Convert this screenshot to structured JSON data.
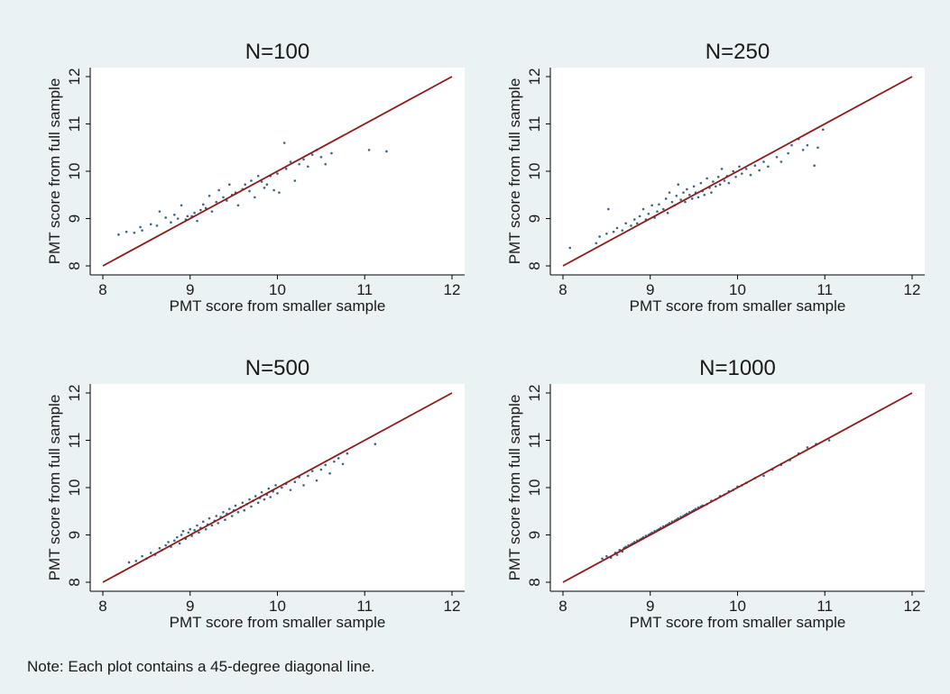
{
  "note": "Note: Each plot contains a 45-degree diagonal line.",
  "colors": {
    "background": "#eaf2f3",
    "plot_area": "#ffffff",
    "diagonal_line": "#8b1a1a",
    "points": "#1a476f"
  },
  "chart_data": [
    {
      "type": "scatter",
      "title": "N=100",
      "xlabel": "PMT score from smaller sample",
      "ylabel": "PMT score from full sample",
      "xlim": [
        8,
        12
      ],
      "ylim": [
        8,
        12
      ],
      "xticks": [
        8,
        9,
        10,
        11,
        12
      ],
      "yticks": [
        8,
        9,
        10,
        11,
        12
      ],
      "grid": false,
      "legend": "none",
      "reference_line": {
        "x": [
          8,
          12
        ],
        "y": [
          8,
          12
        ]
      },
      "points": [
        [
          8.18,
          8.66
        ],
        [
          8.27,
          8.72
        ],
        [
          8.36,
          8.7
        ],
        [
          8.43,
          8.82
        ],
        [
          8.45,
          8.75
        ],
        [
          8.55,
          8.88
        ],
        [
          8.62,
          8.85
        ],
        [
          8.65,
          9.15
        ],
        [
          8.72,
          9.02
        ],
        [
          8.78,
          8.92
        ],
        [
          8.82,
          9.08
        ],
        [
          8.86,
          9.0
        ],
        [
          8.9,
          9.28
        ],
        [
          8.95,
          8.98
        ],
        [
          8.97,
          9.05
        ],
        [
          9.02,
          9.05
        ],
        [
          9.05,
          9.12
        ],
        [
          9.08,
          8.95
        ],
        [
          9.12,
          9.18
        ],
        [
          9.15,
          9.3
        ],
        [
          9.18,
          9.22
        ],
        [
          9.22,
          9.48
        ],
        [
          9.25,
          9.15
        ],
        [
          9.3,
          9.35
        ],
        [
          9.33,
          9.6
        ],
        [
          9.38,
          9.45
        ],
        [
          9.42,
          9.38
        ],
        [
          9.45,
          9.72
        ],
        [
          9.48,
          9.5
        ],
        [
          9.52,
          9.55
        ],
        [
          9.55,
          9.28
        ],
        [
          9.6,
          9.62
        ],
        [
          9.63,
          9.72
        ],
        [
          9.68,
          9.58
        ],
        [
          9.7,
          9.8
        ],
        [
          9.74,
          9.45
        ],
        [
          9.78,
          9.9
        ],
        [
          9.82,
          9.78
        ],
        [
          9.85,
          9.65
        ],
        [
          9.88,
          9.72
        ],
        [
          9.92,
          9.9
        ],
        [
          9.96,
          9.6
        ],
        [
          10.0,
          9.95
        ],
        [
          10.02,
          9.55
        ],
        [
          10.08,
          10.6
        ],
        [
          10.1,
          10.05
        ],
        [
          10.15,
          10.2
        ],
        [
          10.2,
          9.8
        ],
        [
          10.25,
          10.15
        ],
        [
          10.3,
          10.25
        ],
        [
          10.35,
          10.1
        ],
        [
          10.4,
          10.35
        ],
        [
          10.45,
          10.45
        ],
        [
          10.5,
          10.3
        ],
        [
          10.55,
          10.15
        ],
        [
          10.62,
          10.38
        ],
        [
          11.05,
          10.45
        ],
        [
          11.25,
          10.42
        ]
      ]
    },
    {
      "type": "scatter",
      "title": "N=250",
      "xlabel": "PMT score from smaller sample",
      "ylabel": "PMT score from full sample",
      "xlim": [
        8,
        12
      ],
      "ylim": [
        8,
        12
      ],
      "xticks": [
        8,
        9,
        10,
        11,
        12
      ],
      "yticks": [
        8,
        9,
        10,
        11,
        12
      ],
      "grid": false,
      "legend": "none",
      "reference_line": {
        "x": [
          8,
          12
        ],
        "y": [
          8,
          12
        ]
      },
      "points": [
        [
          8.08,
          8.38
        ],
        [
          8.38,
          8.48
        ],
        [
          8.42,
          8.62
        ],
        [
          8.5,
          8.68
        ],
        [
          8.52,
          9.2
        ],
        [
          8.58,
          8.72
        ],
        [
          8.62,
          8.8
        ],
        [
          8.68,
          8.75
        ],
        [
          8.72,
          8.9
        ],
        [
          8.78,
          8.85
        ],
        [
          8.82,
          8.98
        ],
        [
          8.85,
          8.9
        ],
        [
          8.88,
          9.05
        ],
        [
          8.92,
          9.2
        ],
        [
          8.95,
          8.98
        ],
        [
          8.98,
          9.1
        ],
        [
          9.02,
          9.28
        ],
        [
          9.05,
          9.02
        ],
        [
          9.08,
          9.15
        ],
        [
          9.1,
          9.3
        ],
        [
          9.15,
          9.2
        ],
        [
          9.18,
          9.42
        ],
        [
          9.2,
          9.12
        ],
        [
          9.22,
          9.55
        ],
        [
          9.25,
          9.35
        ],
        [
          9.28,
          9.28
        ],
        [
          9.3,
          9.48
        ],
        [
          9.32,
          9.72
        ],
        [
          9.35,
          9.4
        ],
        [
          9.38,
          9.55
        ],
        [
          9.4,
          9.35
        ],
        [
          9.42,
          9.62
        ],
        [
          9.45,
          9.5
        ],
        [
          9.48,
          9.42
        ],
        [
          9.5,
          9.68
        ],
        [
          9.52,
          9.55
        ],
        [
          9.55,
          9.45
        ],
        [
          9.58,
          9.75
        ],
        [
          9.6,
          9.58
        ],
        [
          9.62,
          9.5
        ],
        [
          9.65,
          9.85
        ],
        [
          9.68,
          9.65
        ],
        [
          9.7,
          9.55
        ],
        [
          9.72,
          9.78
        ],
        [
          9.75,
          9.68
        ],
        [
          9.78,
          9.88
        ],
        [
          9.8,
          9.72
        ],
        [
          9.82,
          10.05
        ],
        [
          9.85,
          9.8
        ],
        [
          9.88,
          9.9
        ],
        [
          9.9,
          9.75
        ],
        [
          9.95,
          10.0
        ],
        [
          9.98,
          9.88
        ],
        [
          10.02,
          10.1
        ],
        [
          10.05,
          9.95
        ],
        [
          10.1,
          10.05
        ],
        [
          10.15,
          9.92
        ],
        [
          10.2,
          10.12
        ],
        [
          10.25,
          10.02
        ],
        [
          10.3,
          10.2
        ],
        [
          10.35,
          10.1
        ],
        [
          10.45,
          10.3
        ],
        [
          10.5,
          10.2
        ],
        [
          10.58,
          10.38
        ],
        [
          10.62,
          10.55
        ],
        [
          10.7,
          10.68
        ],
        [
          10.75,
          10.45
        ],
        [
          10.8,
          10.55
        ],
        [
          10.88,
          10.12
        ],
        [
          10.92,
          10.5
        ],
        [
          10.98,
          10.88
        ]
      ]
    },
    {
      "type": "scatter",
      "title": "N=500",
      "xlabel": "PMT score from smaller sample",
      "ylabel": "PMT score from full sample",
      "xlim": [
        8,
        12
      ],
      "ylim": [
        8,
        12
      ],
      "xticks": [
        8,
        9,
        10,
        11,
        12
      ],
      "yticks": [
        8,
        9,
        10,
        11,
        12
      ],
      "grid": false,
      "legend": "none",
      "reference_line": {
        "x": [
          8,
          12
        ],
        "y": [
          8,
          12
        ]
      },
      "points": [
        [
          8.3,
          8.42
        ],
        [
          8.38,
          8.45
        ],
        [
          8.45,
          8.55
        ],
        [
          8.5,
          8.5
        ],
        [
          8.55,
          8.62
        ],
        [
          8.6,
          8.58
        ],
        [
          8.65,
          8.72
        ],
        [
          8.68,
          8.68
        ],
        [
          8.72,
          8.78
        ],
        [
          8.75,
          8.85
        ],
        [
          8.78,
          8.75
        ],
        [
          8.82,
          8.88
        ],
        [
          8.85,
          8.95
        ],
        [
          8.88,
          8.82
        ],
        [
          8.9,
          9.0
        ],
        [
          8.92,
          9.08
        ],
        [
          8.95,
          8.92
        ],
        [
          8.98,
          9.05
        ],
        [
          9.0,
          9.12
        ],
        [
          9.02,
          8.98
        ],
        [
          9.05,
          9.1
        ],
        [
          9.08,
          9.2
        ],
        [
          9.1,
          9.05
        ],
        [
          9.12,
          9.15
        ],
        [
          9.15,
          9.28
        ],
        [
          9.18,
          9.12
        ],
        [
          9.2,
          9.22
        ],
        [
          9.22,
          9.35
        ],
        [
          9.25,
          9.2
        ],
        [
          9.28,
          9.3
        ],
        [
          9.3,
          9.4
        ],
        [
          9.32,
          9.25
        ],
        [
          9.35,
          9.38
        ],
        [
          9.38,
          9.48
        ],
        [
          9.4,
          9.32
        ],
        [
          9.42,
          9.45
        ],
        [
          9.45,
          9.55
        ],
        [
          9.48,
          9.4
        ],
        [
          9.5,
          9.52
        ],
        [
          9.52,
          9.62
        ],
        [
          9.55,
          9.48
        ],
        [
          9.58,
          9.58
        ],
        [
          9.6,
          9.68
        ],
        [
          9.62,
          9.52
        ],
        [
          9.65,
          9.65
        ],
        [
          9.68,
          9.75
        ],
        [
          9.7,
          9.6
        ],
        [
          9.72,
          9.72
        ],
        [
          9.75,
          9.82
        ],
        [
          9.78,
          9.68
        ],
        [
          9.8,
          9.78
        ],
        [
          9.82,
          9.9
        ],
        [
          9.85,
          9.75
        ],
        [
          9.88,
          9.85
        ],
        [
          9.9,
          9.98
        ],
        [
          9.92,
          9.8
        ],
        [
          9.95,
          9.92
        ],
        [
          9.98,
          10.05
        ],
        [
          10.0,
          9.88
        ],
        [
          10.05,
          10.0
        ],
        [
          10.1,
          10.08
        ],
        [
          10.15,
          9.95
        ],
        [
          10.2,
          10.12
        ],
        [
          10.25,
          10.22
        ],
        [
          10.3,
          10.05
        ],
        [
          10.35,
          10.25
        ],
        [
          10.4,
          10.35
        ],
        [
          10.45,
          10.15
        ],
        [
          10.5,
          10.38
        ],
        [
          10.55,
          10.48
        ],
        [
          10.6,
          10.3
        ],
        [
          10.65,
          10.55
        ],
        [
          10.7,
          10.62
        ],
        [
          10.75,
          10.5
        ],
        [
          10.8,
          10.72
        ],
        [
          11.12,
          10.92
        ]
      ]
    },
    {
      "type": "scatter",
      "title": "N=1000",
      "xlabel": "PMT score from smaller sample",
      "ylabel": "PMT score from full sample",
      "xlim": [
        8,
        12
      ],
      "ylim": [
        8,
        12
      ],
      "xticks": [
        8,
        9,
        10,
        11,
        12
      ],
      "yticks": [
        8,
        9,
        10,
        11,
        12
      ],
      "grid": false,
      "legend": "none",
      "reference_line": {
        "x": [
          8,
          12
        ],
        "y": [
          8,
          12
        ]
      },
      "points": [
        [
          8.45,
          8.5
        ],
        [
          8.5,
          8.55
        ],
        [
          8.55,
          8.52
        ],
        [
          8.6,
          8.62
        ],
        [
          8.62,
          8.58
        ],
        [
          8.65,
          8.68
        ],
        [
          8.68,
          8.65
        ],
        [
          8.7,
          8.72
        ],
        [
          8.72,
          8.75
        ],
        [
          8.75,
          8.78
        ],
        [
          8.78,
          8.8
        ],
        [
          8.8,
          8.82
        ],
        [
          8.82,
          8.85
        ],
        [
          8.85,
          8.88
        ],
        [
          8.88,
          8.9
        ],
        [
          8.9,
          8.92
        ],
        [
          8.92,
          8.95
        ],
        [
          8.95,
          8.98
        ],
        [
          8.98,
          9.0
        ],
        [
          9.0,
          9.02
        ],
        [
          9.02,
          9.05
        ],
        [
          9.05,
          9.08
        ],
        [
          9.08,
          9.1
        ],
        [
          9.1,
          9.12
        ],
        [
          9.12,
          9.15
        ],
        [
          9.15,
          9.18
        ],
        [
          9.18,
          9.2
        ],
        [
          9.2,
          9.22
        ],
        [
          9.22,
          9.25
        ],
        [
          9.25,
          9.28
        ],
        [
          9.28,
          9.3
        ],
        [
          9.3,
          9.32
        ],
        [
          9.32,
          9.35
        ],
        [
          9.35,
          9.38
        ],
        [
          9.38,
          9.4
        ],
        [
          9.4,
          9.42
        ],
        [
          9.42,
          9.45
        ],
        [
          9.45,
          9.48
        ],
        [
          9.48,
          9.5
        ],
        [
          9.5,
          9.52
        ],
        [
          9.52,
          9.55
        ],
        [
          9.55,
          9.58
        ],
        [
          9.58,
          9.6
        ],
        [
          9.6,
          9.62
        ],
        [
          9.65,
          9.65
        ],
        [
          9.7,
          9.72
        ],
        [
          9.75,
          9.75
        ],
        [
          9.8,
          9.82
        ],
        [
          9.85,
          9.85
        ],
        [
          9.9,
          9.92
        ],
        [
          9.95,
          9.95
        ],
        [
          10.0,
          10.02
        ],
        [
          10.05,
          10.05
        ],
        [
          10.1,
          10.1
        ],
        [
          10.2,
          10.2
        ],
        [
          10.3,
          10.25
        ],
        [
          10.4,
          10.38
        ],
        [
          10.5,
          10.48
        ],
        [
          10.6,
          10.58
        ],
        [
          10.7,
          10.72
        ],
        [
          10.8,
          10.85
        ],
        [
          10.9,
          10.92
        ],
        [
          11.05,
          11.0
        ]
      ]
    }
  ]
}
